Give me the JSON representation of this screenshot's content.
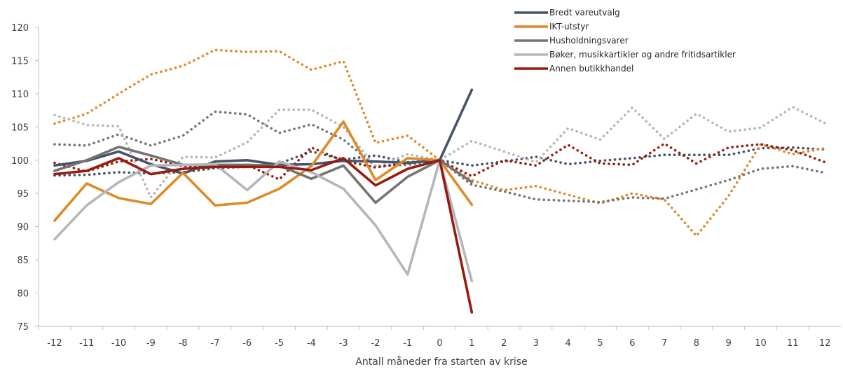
{
  "chart_data": {
    "type": "line",
    "title": "",
    "xlabel": "Antall måneder fra starten av krise",
    "ylabel": "",
    "x": [
      -12,
      -11,
      -10,
      -9,
      -8,
      -7,
      -6,
      -5,
      -4,
      -3,
      -2,
      -1,
      0,
      1,
      2,
      3,
      4,
      5,
      6,
      7,
      8,
      9,
      10,
      11,
      12
    ],
    "x_tick_labels": [
      "-12",
      "-11",
      "-10",
      "-9",
      "-8",
      "-7",
      "-6",
      "-5",
      "-4",
      "-3",
      "-2",
      "-1",
      "0",
      "1",
      "2",
      "3",
      "4",
      "5",
      "6",
      "7",
      "8",
      "9",
      "10",
      "11",
      "12"
    ],
    "ylim": [
      75,
      120
    ],
    "y_ticks": [
      75,
      80,
      85,
      90,
      95,
      100,
      105,
      110,
      115,
      120
    ],
    "grid": false,
    "legend_position": "top",
    "line_styles": {
      "solid": "solid",
      "dotted": "dotted"
    },
    "series": [
      {
        "name": "Bredt vareutvalg",
        "color": "#44546A",
        "solid_x": [
          -12,
          -11,
          -10,
          -9,
          -8,
          -7,
          -6,
          -5,
          -4,
          -3,
          -2,
          -1,
          0,
          1
        ],
        "solid_y": [
          99.2,
          99.9,
          101.3,
          99.4,
          98.0,
          99.8,
          100.0,
          99.3,
          99.4,
          99.9,
          99.8,
          99.6,
          100.0,
          110.6
        ],
        "dotted_x": [
          -12,
          -11,
          -10,
          -9,
          -8,
          -7,
          -6,
          -5,
          -4,
          -3,
          -2,
          -1,
          0,
          1,
          2,
          3,
          4,
          5,
          6,
          7,
          8,
          9,
          10,
          11,
          12
        ],
        "dotted_y": [
          97.7,
          97.8,
          98.2,
          98.0,
          98.2,
          98.8,
          99.0,
          99.5,
          101.3,
          100.1,
          100.7,
          99.7,
          100.0,
          99.2,
          99.8,
          100.5,
          99.4,
          99.9,
          100.3,
          100.8,
          100.8,
          100.8,
          101.8,
          101.9,
          101.6
        ]
      },
      {
        "name": "IKT-utstyr",
        "color": "#DE8A28",
        "solid_x": [
          -12,
          -11,
          -10,
          -9,
          -8,
          -7,
          -6,
          -5,
          -4,
          -3,
          -2,
          -1,
          0,
          1
        ],
        "solid_y": [
          90.9,
          96.5,
          94.3,
          93.4,
          98.1,
          93.2,
          93.6,
          95.7,
          99.1,
          105.8,
          97.0,
          100.3,
          100.0,
          93.3
        ],
        "dotted_x": [
          -12,
          -11,
          -10,
          -9,
          -8,
          -7,
          -6,
          -5,
          -4,
          -3,
          -2,
          -1,
          0,
          1,
          2,
          3,
          4,
          5,
          6,
          7,
          8,
          9,
          10,
          11,
          12
        ],
        "dotted_y": [
          105.5,
          107.0,
          110.0,
          112.9,
          114.2,
          116.6,
          116.3,
          116.4,
          113.6,
          114.9,
          102.6,
          103.7,
          100.0,
          97.0,
          95.5,
          96.1,
          94.8,
          93.5,
          95.0,
          94.1,
          88.6,
          94.6,
          102.4,
          100.9,
          101.8
        ]
      },
      {
        "name": "Husholdningsvarer",
        "color": "#747474",
        "solid_x": [
          -12,
          -11,
          -10,
          -9,
          -8,
          -7,
          -6,
          -5,
          -4,
          -3,
          -2,
          -1,
          0,
          1
        ],
        "solid_y": [
          98.4,
          100.0,
          102.0,
          100.7,
          99.3,
          99.3,
          99.3,
          99.2,
          97.2,
          99.2,
          93.6,
          97.5,
          100.0,
          96.7
        ],
        "dotted_x": [
          -12,
          -11,
          -10,
          -9,
          -8,
          -7,
          -6,
          -5,
          -4,
          -3,
          -2,
          -1,
          0,
          1,
          2,
          3,
          4,
          5,
          6,
          7,
          8,
          9,
          10,
          11,
          12
        ],
        "dotted_y": [
          102.4,
          102.2,
          103.9,
          102.2,
          103.7,
          107.3,
          106.9,
          104.1,
          105.4,
          103.1,
          99.1,
          99.3,
          100.0,
          96.3,
          95.3,
          94.1,
          93.9,
          93.7,
          94.4,
          94.2,
          95.6,
          97.0,
          98.7,
          99.1,
          98.1
        ]
      },
      {
        "name": "Bøker, musikkartikler og andre fritidsartikler",
        "color": "#B4B7BA",
        "solid_x": [
          -12,
          -11,
          -10,
          -9,
          -8,
          -7,
          -6,
          -5,
          -4,
          -3,
          -2,
          -1,
          0,
          1
        ],
        "solid_y": [
          88.1,
          93.2,
          96.7,
          99.2,
          99.3,
          99.4,
          95.5,
          99.8,
          98.2,
          95.7,
          90.2,
          82.8,
          100.0,
          81.8
        ],
        "dotted_x": [
          -12,
          -11,
          -10,
          -9,
          -8,
          -7,
          -6,
          -5,
          -4,
          -3,
          -2,
          -1,
          0,
          1,
          2,
          3,
          4,
          5,
          6,
          7,
          8,
          9,
          10,
          11,
          12
        ],
        "dotted_y": [
          106.8,
          105.3,
          105.1,
          94.4,
          100.5,
          100.4,
          102.7,
          107.6,
          107.6,
          105.0,
          99.0,
          100.9,
          100.0,
          102.9,
          101.3,
          99.7,
          104.8,
          103.1,
          107.9,
          103.2,
          107.0,
          104.3,
          104.9,
          108.0,
          105.6
        ]
      },
      {
        "name": "Annen butikkhandel",
        "color": "#991A0E",
        "solid_x": [
          -12,
          -11,
          -10,
          -9,
          -8,
          -7,
          -6,
          -5,
          -4,
          -3,
          -2,
          -1,
          0,
          1
        ],
        "solid_y": [
          97.9,
          98.4,
          100.3,
          97.9,
          98.7,
          99.0,
          99.0,
          99.0,
          98.5,
          100.3,
          96.2,
          98.7,
          100.0,
          77.1
        ],
        "dotted_x": [
          -12,
          -11,
          -10,
          -9,
          -8,
          -7,
          -6,
          -5,
          -4,
          -3,
          -2,
          -1,
          0,
          1,
          2,
          3,
          4,
          5,
          6,
          7,
          8,
          9,
          10,
          11,
          12
        ],
        "dotted_y": [
          99.6,
          98.3,
          99.8,
          100.2,
          99.1,
          99.1,
          99.3,
          97.1,
          101.9,
          99.9,
          98.9,
          99.6,
          100.0,
          97.6,
          100.0,
          99.2,
          102.3,
          99.5,
          99.3,
          102.5,
          99.5,
          101.9,
          102.4,
          101.5,
          99.7
        ]
      }
    ]
  }
}
